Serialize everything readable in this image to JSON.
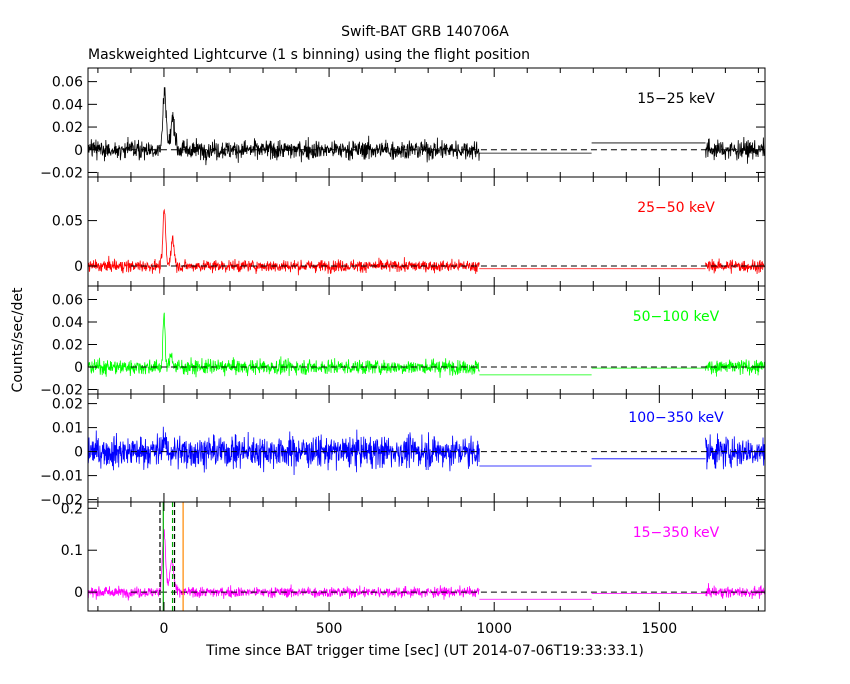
{
  "chart_data": {
    "type": "line",
    "title": "Swift-BAT GRB 140706A",
    "subtitle": "Maskweighted Lightcurve (1 s binning) using the flight position",
    "xlabel": "Time since BAT trigger time [sec] (UT 2014-07-06T19:33:33.1)",
    "ylabel": "Counts/sec/det",
    "xlim": [
      -230,
      1820
    ],
    "x_ticks": [
      "0",
      "500",
      "1000",
      "1500"
    ],
    "grid": false,
    "panels": [
      {
        "name": "15-25 keV",
        "label": "15−25 keV",
        "color": "#000000",
        "ylim": [
          -0.024,
          0.072
        ],
        "y_ticks": [
          "0.06",
          "0.04",
          "0.02",
          "0",
          "−0.02"
        ],
        "noise_sigma": 0.0085,
        "pulses": [
          {
            "t": 2,
            "amp": 0.052,
            "w": 5
          },
          {
            "t": 27,
            "amp": 0.028,
            "w": 6
          }
        ],
        "segments": [
          {
            "x": [
              -230,
              955
            ],
            "style": "noise"
          },
          {
            "x": [
              955,
              1295
            ],
            "y": -0.003,
            "style": "step"
          },
          {
            "x": [
              1295,
              1640
            ],
            "y": 0.006,
            "style": "step"
          },
          {
            "x": [
              1640,
              1820
            ],
            "style": "noise"
          }
        ]
      },
      {
        "name": "25-50 keV",
        "label": "25−50 keV",
        "color": "#ff0000",
        "ylim": [
          -0.022,
          0.098
        ],
        "y_ticks": [
          "0.05",
          "0"
        ],
        "noise_sigma": 0.0065,
        "pulses": [
          {
            "t": 1,
            "amp": 0.062,
            "w": 4
          },
          {
            "t": 26,
            "amp": 0.03,
            "w": 5
          }
        ],
        "segments": [
          {
            "x": [
              -230,
              955
            ],
            "style": "noise"
          },
          {
            "x": [
              955,
              1640
            ],
            "y": -0.003,
            "style": "step"
          },
          {
            "x": [
              1640,
              1820
            ],
            "style": "noise"
          }
        ]
      },
      {
        "name": "50-100 keV",
        "label": "50−100 keV",
        "color": "#00ff00",
        "ylim": [
          -0.024,
          0.072
        ],
        "y_ticks": [
          "0.06",
          "0.04",
          "0.02",
          "0",
          "−0.02"
        ],
        "noise_sigma": 0.0065,
        "pulses": [
          {
            "t": 0,
            "amp": 0.048,
            "w": 3
          },
          {
            "t": 22,
            "amp": 0.012,
            "w": 4
          }
        ],
        "segments": [
          {
            "x": [
              -230,
              955
            ],
            "style": "noise"
          },
          {
            "x": [
              955,
              1295
            ],
            "y": -0.007,
            "style": "step"
          },
          {
            "x": [
              1295,
              1640
            ],
            "y": -0.001,
            "style": "step"
          },
          {
            "x": [
              1640,
              1820
            ],
            "style": "noise"
          }
        ]
      },
      {
        "name": "100-350 keV",
        "label": "100−350 keV",
        "color": "#0000ff",
        "ylim": [
          -0.021,
          0.024
        ],
        "y_ticks": [
          "0.02",
          "0.01",
          "0",
          "−0.01",
          "−0.02"
        ],
        "noise_sigma": 0.0065,
        "pulses": [
          {
            "t": 0,
            "amp": 0.006,
            "w": 4
          }
        ],
        "segments": [
          {
            "x": [
              -230,
              955
            ],
            "style": "noise"
          },
          {
            "x": [
              955,
              1295
            ],
            "y": -0.006,
            "style": "step"
          },
          {
            "x": [
              1295,
              1640
            ],
            "y": -0.003,
            "style": "step"
          },
          {
            "x": [
              1640,
              1820
            ],
            "style": "noise"
          }
        ]
      },
      {
        "name": "15-350 keV",
        "label": "15−350 keV",
        "color": "#ff00ff",
        "ylim": [
          -0.045,
          0.215
        ],
        "y_ticks": [
          "0.2",
          "0.1",
          "0"
        ],
        "noise_sigma": 0.0125,
        "pulses": [
          {
            "t": 0,
            "amp": 0.145,
            "w": 5
          },
          {
            "t": 24,
            "amp": 0.075,
            "w": 6
          }
        ],
        "segments": [
          {
            "x": [
              -230,
              955
            ],
            "style": "noise"
          },
          {
            "x": [
              955,
              1295
            ],
            "y": -0.017,
            "style": "step"
          },
          {
            "x": [
              1295,
              1640
            ],
            "y": -0.003,
            "style": "step"
          },
          {
            "x": [
              1640,
              1820
            ],
            "style": "noise"
          }
        ],
        "markers": [
          {
            "x": -12,
            "color": "#000000",
            "dash": true
          },
          {
            "x": 32,
            "color": "#000000",
            "dash": true
          },
          {
            "x": -2,
            "color": "#00aa00",
            "dash": false
          },
          {
            "x": 26,
            "color": "#00aa00",
            "dash": true
          },
          {
            "x": 58,
            "color": "#ff8800",
            "dash": false
          }
        ]
      }
    ]
  }
}
